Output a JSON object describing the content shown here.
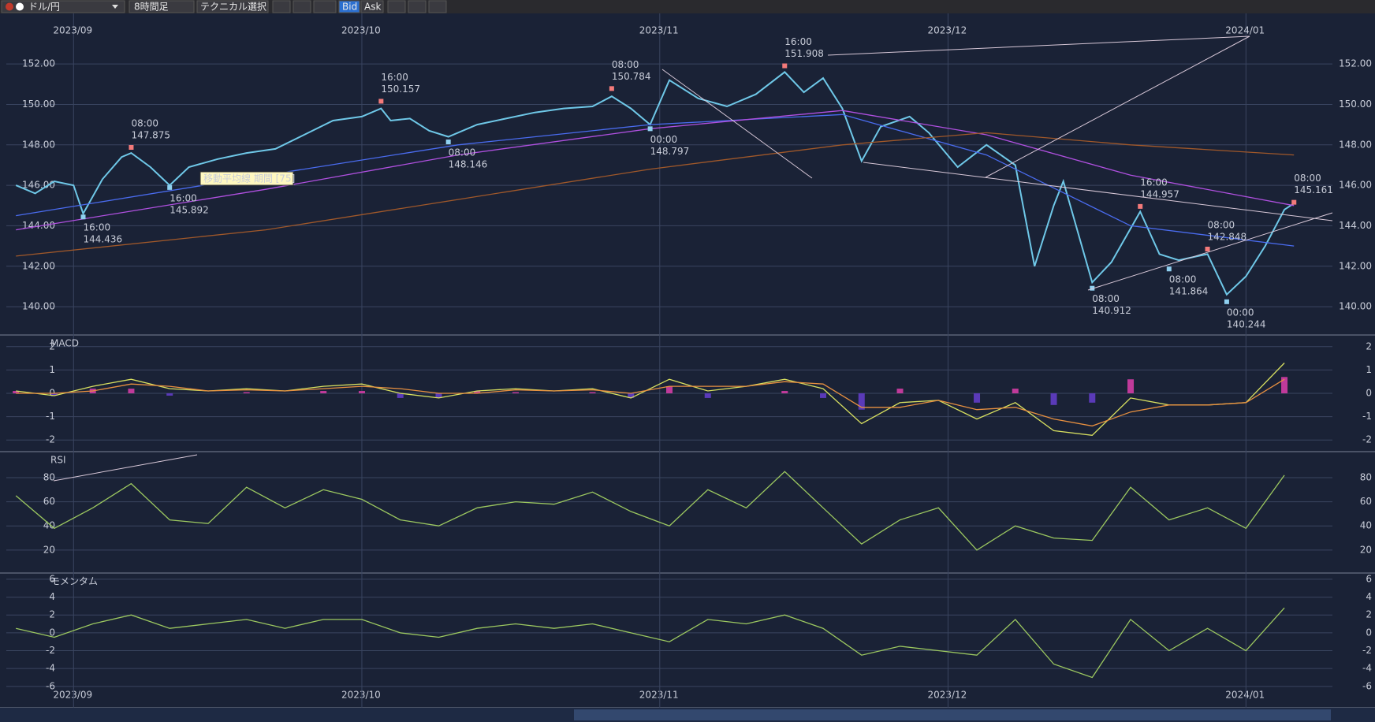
{
  "toolbar": {
    "pair": "ドル/円",
    "timeframe": "8時間足",
    "technical": "テクニカル選択",
    "bid": "Bid",
    "ask": "Ask"
  },
  "chart_data": [
    {
      "type": "line",
      "tooltip": "移動平均線 期間 [75]",
      "xlim": [
        -7,
        131
      ],
      "xticks": [
        {
          "value": 0,
          "label": "2023/09"
        },
        {
          "value": 30,
          "label": "2023/10"
        },
        {
          "value": 61,
          "label": "2023/11"
        },
        {
          "value": 91,
          "label": "2023/12"
        },
        {
          "value": 122,
          "label": "2024/01"
        }
      ],
      "ylim": [
        138.6,
        154.5
      ],
      "yticks": [
        {
          "value": 140,
          "label": "140.00"
        },
        {
          "value": 142,
          "label": "142.00"
        },
        {
          "value": 144,
          "label": "144.00"
        },
        {
          "value": 146,
          "label": "146.00"
        },
        {
          "value": 148,
          "label": "148.00"
        },
        {
          "value": 150,
          "label": "150.00"
        },
        {
          "value": 152,
          "label": "152.00"
        }
      ],
      "series": [
        {
          "color": "#6fc8e8",
          "x": [
            -6,
            -4,
            -2,
            0,
            1,
            3,
            5,
            6,
            8,
            10,
            12,
            15,
            18,
            21,
            24,
            27,
            30,
            32,
            33,
            35,
            37,
            39,
            42,
            45,
            48,
            51,
            54,
            56,
            58,
            60,
            62,
            65,
            68,
            71,
            74,
            76,
            78,
            80,
            82,
            84,
            87,
            89,
            92,
            95,
            98,
            100,
            102,
            103,
            106,
            108,
            111,
            113,
            115,
            117,
            118,
            120,
            122,
            124,
            126,
            127
          ],
          "values": [
            146.0,
            145.6,
            146.2,
            146.0,
            144.6,
            146.3,
            147.4,
            147.6,
            146.9,
            146.0,
            146.9,
            147.3,
            147.6,
            147.8,
            148.5,
            149.2,
            149.4,
            149.8,
            149.2,
            149.3,
            148.7,
            148.4,
            149.0,
            149.3,
            149.6,
            149.8,
            149.9,
            150.4,
            149.8,
            149.0,
            151.2,
            150.3,
            149.9,
            150.5,
            151.6,
            150.6,
            151.3,
            149.8,
            147.2,
            148.9,
            149.4,
            148.6,
            146.9,
            148.0,
            147.0,
            142.0,
            145.0,
            146.2,
            141.2,
            142.2,
            144.7,
            142.6,
            142.3,
            142.5,
            142.6,
            140.6,
            141.5,
            143.0,
            144.8,
            145.1
          ]
        },
        {
          "color": "#4a6cf0",
          "x": [
            -6,
            20,
            40,
            60,
            80,
            95,
            110,
            127
          ],
          "values": [
            144.5,
            146.5,
            148.0,
            149.0,
            149.5,
            147.5,
            144.0,
            143.0
          ]
        },
        {
          "color": "#b050e0",
          "x": [
            -6,
            20,
            40,
            60,
            80,
            95,
            110,
            127
          ],
          "values": [
            143.8,
            145.8,
            147.5,
            148.8,
            149.7,
            148.5,
            146.5,
            145.0
          ]
        },
        {
          "color": "#a0582a",
          "x": [
            -6,
            20,
            40,
            60,
            80,
            95,
            110,
            127
          ],
          "values": [
            142.5,
            143.8,
            145.3,
            146.8,
            148.0,
            148.6,
            148.0,
            147.5
          ]
        }
      ],
      "annotations": [
        {
          "kind": "low",
          "x": 1,
          "time": "16:00",
          "price": 144.436
        },
        {
          "kind": "high",
          "x": 6,
          "time": "08:00",
          "price": 147.875
        },
        {
          "kind": "low",
          "x": 10,
          "time": "16:00",
          "price": 145.892
        },
        {
          "kind": "high",
          "x": 32,
          "time": "16:00",
          "price": 150.157
        },
        {
          "kind": "low",
          "x": 39,
          "time": "08:00",
          "price": 148.146
        },
        {
          "kind": "high",
          "x": 56,
          "time": "08:00",
          "price": 150.784
        },
        {
          "kind": "low",
          "x": 60,
          "time": "00:00",
          "price": 148.797
        },
        {
          "kind": "high",
          "x": 74,
          "time": "16:00",
          "price": 151.908
        },
        {
          "kind": "low",
          "x": 106,
          "time": "08:00",
          "price": 140.912
        },
        {
          "kind": "high",
          "x": 111,
          "time": "16:00",
          "price": 144.957
        },
        {
          "kind": "low",
          "x": 114,
          "time": "08:00",
          "price": 141.864
        },
        {
          "kind": "high",
          "x": 118,
          "time": "08:00",
          "price": 142.848
        },
        {
          "kind": "low",
          "x": 120,
          "time": "00:00",
          "price": 140.244
        },
        {
          "kind": "high",
          "x": 127,
          "time": "08:00",
          "price": 145.161
        }
      ]
    },
    {
      "type": "macd",
      "label": "MACD",
      "ylim": [
        -2.5,
        2.5
      ],
      "yticks": [
        -2,
        -1,
        0,
        1,
        2
      ],
      "x": [
        -6,
        -2,
        2,
        6,
        10,
        14,
        18,
        22,
        26,
        30,
        34,
        38,
        42,
        46,
        50,
        54,
        58,
        62,
        66,
        70,
        74,
        78,
        82,
        86,
        90,
        94,
        98,
        102,
        106,
        110,
        114,
        118,
        122,
        126
      ],
      "series": [
        {
          "color": "#d8e060",
          "values": [
            0.1,
            -0.1,
            0.3,
            0.6,
            0.2,
            0.1,
            0.2,
            0.1,
            0.3,
            0.4,
            0.0,
            -0.2,
            0.1,
            0.2,
            0.1,
            0.2,
            -0.2,
            0.6,
            0.1,
            0.3,
            0.6,
            0.2,
            -1.3,
            -0.4,
            -0.3,
            -1.1,
            -0.4,
            -1.6,
            -1.8,
            -0.2,
            -0.5,
            -0.5,
            -0.4,
            1.3
          ]
        },
        {
          "color": "#e89040",
          "values": [
            0.0,
            0.0,
            0.1,
            0.4,
            0.3,
            0.1,
            0.15,
            0.1,
            0.2,
            0.3,
            0.2,
            0.0,
            0.0,
            0.15,
            0.1,
            0.15,
            0.0,
            0.3,
            0.3,
            0.3,
            0.5,
            0.4,
            -0.6,
            -0.6,
            -0.3,
            -0.7,
            -0.6,
            -1.1,
            -1.4,
            -0.8,
            -0.5,
            -0.5,
            -0.4,
            0.6
          ]
        }
      ],
      "hist": [
        0.1,
        -0.1,
        0.2,
        0.2,
        -0.1,
        0.0,
        0.05,
        0.0,
        0.1,
        0.1,
        -0.2,
        -0.2,
        0.1,
        0.05,
        0.0,
        0.05,
        -0.2,
        0.3,
        -0.2,
        0.0,
        0.1,
        -0.2,
        -0.7,
        0.2,
        0.0,
        -0.4,
        0.2,
        -0.5,
        -0.4,
        0.6,
        0.0,
        0.0,
        0.0,
        0.7
      ],
      "hist_colors": [
        "#c03a9a",
        "#5a3ab8"
      ]
    },
    {
      "type": "line",
      "label": "RSI",
      "ylim": [
        1,
        101.5
      ],
      "yticks": [
        20,
        40,
        60,
        80
      ],
      "x": [
        -6,
        -2,
        2,
        6,
        10,
        14,
        18,
        22,
        26,
        30,
        34,
        38,
        42,
        46,
        50,
        54,
        58,
        62,
        66,
        70,
        74,
        78,
        82,
        86,
        90,
        94,
        98,
        102,
        106,
        110,
        114,
        118,
        122,
        126
      ],
      "series": [
        {
          "color": "#9cc860",
          "values": [
            65,
            38,
            55,
            75,
            45,
            42,
            72,
            55,
            70,
            62,
            45,
            40,
            55,
            60,
            58,
            68,
            52,
            40,
            70,
            55,
            85,
            55,
            25,
            45,
            55,
            20,
            40,
            30,
            28,
            72,
            45,
            55,
            38,
            82
          ]
        }
      ]
    },
    {
      "type": "line",
      "label": "モメンタム",
      "ylim": [
        -8.4,
        6.7
      ],
      "yticks": [
        -6,
        -4,
        -2,
        0,
        2,
        4,
        6
      ],
      "x": [
        -6,
        -2,
        2,
        6,
        10,
        14,
        18,
        22,
        26,
        30,
        34,
        38,
        42,
        46,
        50,
        54,
        58,
        62,
        66,
        70,
        74,
        78,
        82,
        86,
        90,
        94,
        98,
        102,
        106,
        110,
        114,
        118,
        122,
        126
      ],
      "series": [
        {
          "color": "#9cc860",
          "values": [
            0.5,
            -0.5,
            1.0,
            2.0,
            0.5,
            1.0,
            1.5,
            0.5,
            1.5,
            1.5,
            0.0,
            -0.5,
            0.5,
            1.0,
            0.5,
            1.0,
            0.0,
            -1.0,
            1.5,
            1.0,
            2.0,
            0.5,
            -2.5,
            -1.5,
            -2.0,
            -2.5,
            1.5,
            -3.5,
            -5.0,
            1.5,
            -2.0,
            0.5,
            -2.0,
            2.8
          ]
        }
      ]
    }
  ]
}
